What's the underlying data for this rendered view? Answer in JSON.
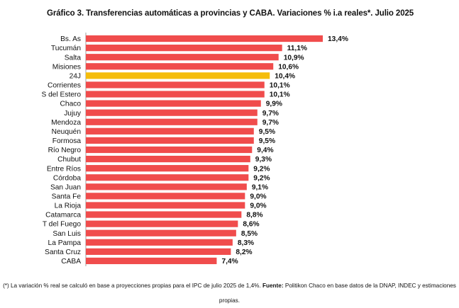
{
  "chart_data": {
    "type": "bar",
    "orientation": "horizontal",
    "title": "Gráfico 3. Transferencias automáticas a provincias y CABA. Variaciones % i.a reales*. Julio 2025",
    "categories": [
      "Bs. As",
      "Tucumán",
      "Salta",
      "Misiones",
      "24J",
      "Corrientes",
      "S del Estero",
      "Chaco",
      "Jujuy",
      "Mendoza",
      "Neuquén",
      "Formosa",
      "Río Negro",
      "Chubut",
      "Entre Ríos",
      "Córdoba",
      "San Juan",
      "Santa Fe",
      "La Rioja",
      "Catamarca",
      "T del Fuego",
      "San Luis",
      "La Pampa",
      "Santa Cruz",
      "CABA"
    ],
    "values": [
      13.4,
      11.1,
      10.9,
      10.6,
      10.4,
      10.1,
      10.1,
      9.9,
      9.7,
      9.7,
      9.5,
      9.5,
      9.4,
      9.3,
      9.2,
      9.2,
      9.1,
      9.0,
      9.0,
      8.8,
      8.6,
      8.5,
      8.3,
      8.2,
      7.4
    ],
    "value_labels": [
      "13,4%",
      "11,1%",
      "10,9%",
      "10,6%",
      "10,4%",
      "10,1%",
      "10,1%",
      "9,9%",
      "9,7%",
      "9,7%",
      "9,5%",
      "9,5%",
      "9,4%",
      "9,3%",
      "9,2%",
      "9,2%",
      "9,1%",
      "9,0%",
      "9,0%",
      "8,8%",
      "8,6%",
      "8,5%",
      "8,3%",
      "8,2%",
      "7,4%"
    ],
    "highlight_category": "24J",
    "xlim": [
      0,
      13.4
    ],
    "grid": false,
    "legend": "none",
    "colors": {
      "bar": "#f04c4c",
      "highlight": "#f5bd0b",
      "axis": "#888888"
    }
  },
  "footnote": {
    "note": "(*) La variación % real se calculó en base a proyecciones propias para el IPC de julio 2025 de 1,4%. ",
    "source_label": "Fuente:",
    "source_text": " Politikon Chaco en base datos de la DNAP, INDEC y estimaciones propias."
  }
}
